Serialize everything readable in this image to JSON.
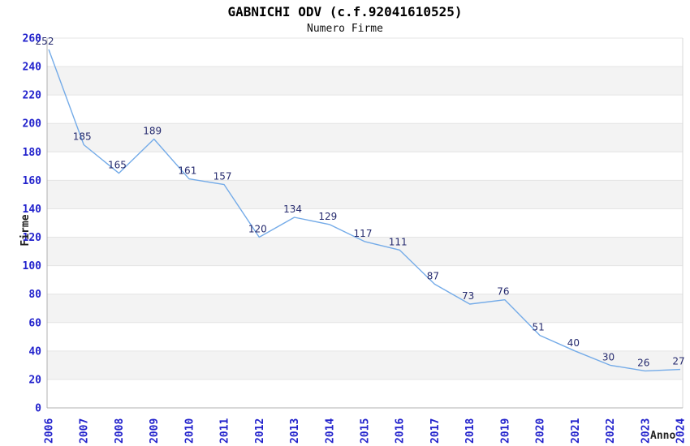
{
  "header": {
    "title": "GABNICHI ODV (c.f.92041610525)",
    "subtitle": "Numero Firme"
  },
  "chart_data": {
    "type": "line",
    "title": "GABNICHI ODV (c.f.92041610525)",
    "subtitle": "Numero Firme",
    "xlabel": "Anno",
    "ylabel": "Firme",
    "categories": [
      "2006",
      "2007",
      "2008",
      "2009",
      "2010",
      "2011",
      "2012",
      "2013",
      "2014",
      "2015",
      "2016",
      "2017",
      "2018",
      "2019",
      "2020",
      "2021",
      "2022",
      "2023",
      "2024"
    ],
    "values": [
      252,
      185,
      165,
      189,
      161,
      157,
      120,
      134,
      129,
      117,
      111,
      87,
      73,
      76,
      51,
      40,
      30,
      26,
      27
    ],
    "ylim": [
      0,
      260
    ],
    "ytick_step": 20,
    "grid": true,
    "legend": "none",
    "bands": "alternating-horizontal",
    "colors": {
      "line": "#74abe8",
      "tick_label": "#2222cc",
      "value_label": "#252a6e",
      "gridline": "#e4e4e4",
      "band": "#f3f3f3",
      "axis_line": "#b0b0b0",
      "plot_border": "#d9d9d9",
      "title": "#000000",
      "axis_title": "#222222",
      "background": "#ffffff"
    }
  }
}
